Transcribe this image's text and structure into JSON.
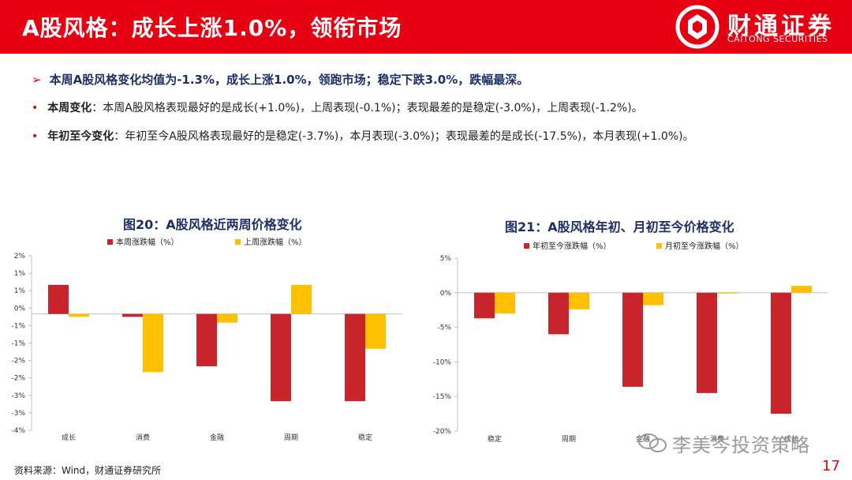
{
  "header": {
    "title": "A股风格：成长上涨1.0%，领衔市场",
    "brand_cn": "财通证券",
    "brand_en": "CAITONG SECURITIES",
    "logo_icon": "caitong-logo-icon"
  },
  "summary": {
    "main": "本周A股风格变化均值为-1.3%，成长上涨1.0%，领跑市场；稳定下跌3.0%，跌幅最深。",
    "week_label": "本周变化",
    "week_text": "：本周A股风格表现最好的是成长(+1.0%)，上周表现(-0.1%)；表现最差的是稳定(-3.0%)，上周表现(-1.2%)。",
    "ytd_label": "年初至今变化",
    "ytd_text": "：年初至今A股风格表现最好的是稳定(-3.7%)，本月表现(-3.0%)；表现最差的是成长(-17.5%)，本月表现(+1.0%)。"
  },
  "colors": {
    "red": "#c8242c",
    "yellow": "#ffc000",
    "brand": "#e60012",
    "navy": "#1e2e66"
  },
  "chart_data": [
    {
      "type": "bar",
      "title": "图20：A股风格近两周价格变化",
      "categories": [
        "成长",
        "消费",
        "金融",
        "周期",
        "稳定"
      ],
      "series": [
        {
          "name": "本周涨跌幅（%）",
          "values": [
            1.0,
            -0.1,
            -1.8,
            -3.0,
            -3.0
          ]
        },
        {
          "name": "上周涨跌幅（%）",
          "values": [
            -0.1,
            -2.0,
            -0.3,
            1.0,
            -1.2
          ]
        }
      ],
      "ylim": [
        -4,
        2
      ],
      "yticks": [
        "2%",
        "1%",
        "1%",
        "0%",
        "-1%",
        "-1%",
        "-2%",
        "-2%",
        "-3%",
        "-3%",
        "-4%"
      ],
      "legend": "top",
      "grid": false
    },
    {
      "type": "bar",
      "title": "图21：A股风格年初、月初至今价格变化",
      "categories": [
        "稳定",
        "周期",
        "金融",
        "消费",
        "成长"
      ],
      "series": [
        {
          "name": "年初至今涨跌幅（%）",
          "values": [
            -3.7,
            -6.0,
            -13.6,
            -14.5,
            -17.5
          ]
        },
        {
          "name": "月初至今涨跌幅（%）",
          "values": [
            -3.0,
            -2.4,
            -1.8,
            -0.1,
            1.0
          ]
        }
      ],
      "ylim": [
        -20,
        5
      ],
      "yticks": [
        "5%",
        "0%",
        "-5%",
        "-10%",
        "-15%",
        "-20%"
      ],
      "legend": "top",
      "grid": false
    }
  ],
  "footer": {
    "source": "资料来源：Wind，财通证券研究所",
    "watermark": "李美岑投资策略",
    "page_number": "17"
  }
}
